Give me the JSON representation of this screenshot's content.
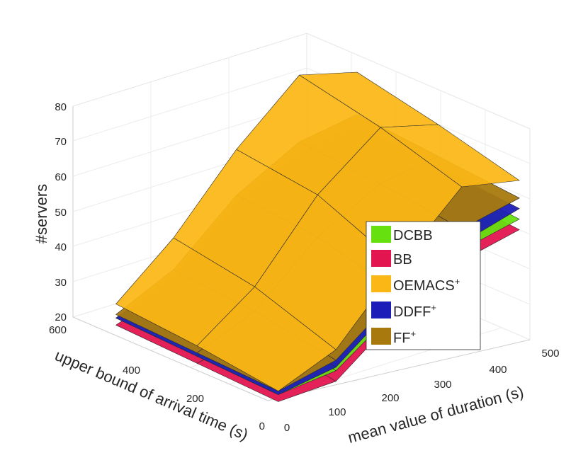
{
  "chart_data": {
    "type": "surface3d",
    "zlabel": "#servers",
    "ylabel": "upper bound of arrival time (s)",
    "xlabel": "mean value of duration (s)",
    "zlim": [
      20,
      85
    ],
    "ylim": [
      0,
      600
    ],
    "xlim": [
      0,
      500
    ],
    "z_ticks": [
      "20",
      "30",
      "40",
      "50",
      "60",
      "70",
      "80"
    ],
    "y_ticks": [
      "0",
      "200",
      "400",
      "600"
    ],
    "x_ticks": [
      "0",
      "100",
      "200",
      "300",
      "400",
      "500"
    ],
    "grid": true,
    "legend_position": "right-center",
    "series": [
      {
        "name": "DCBB",
        "sup": "",
        "color": "#66e00f",
        "surface": {
          "duration": [
            20,
            130,
            250,
            370,
            480
          ],
          "arrival": [
            500,
            250,
            0
          ],
          "z": [
            [
              23,
              30,
              47,
              55,
              60
            ],
            [
              22,
              28,
              45,
              52,
              57
            ],
            [
              21,
              24,
              38,
              50,
              55
            ]
          ]
        }
      },
      {
        "name": "BB",
        "sup": "",
        "color": "#e31550",
        "surface": {
          "duration": [
            20,
            130,
            250,
            370,
            480
          ],
          "arrival": [
            500,
            250,
            0
          ],
          "z": [
            [
              21,
              28,
              44,
              51,
              56
            ],
            [
              20,
              25,
              41,
              48,
              54
            ],
            [
              19,
              21,
              36,
              47,
              52
            ]
          ]
        }
      },
      {
        "name": "OEMACS",
        "sup": "+",
        "color": "#fbb716",
        "surface": {
          "duration": [
            20,
            130,
            250,
            370,
            480
          ],
          "arrival": [
            500,
            250,
            0
          ],
          "z": [
            [
              27,
              42,
              63,
              80,
              77
            ],
            [
              25,
              38,
              60,
              75,
              72
            ],
            [
              22,
              30,
              50,
              68,
              66
            ]
          ]
        }
      },
      {
        "name": "DDFF",
        "sup": "+",
        "color": "#1c1cb8",
        "surface": {
          "duration": [
            20,
            130,
            250,
            370,
            480
          ],
          "arrival": [
            500,
            250,
            0
          ],
          "z": [
            [
              23,
              31,
              48,
              58,
              62
            ],
            [
              22,
              29,
              46,
              56,
              60
            ],
            [
              21,
              25,
              40,
              52,
              58
            ]
          ]
        }
      },
      {
        "name": "FF",
        "sup": "+",
        "color": "#a87a0e",
        "surface": {
          "duration": [
            20,
            130,
            250,
            370,
            480
          ],
          "arrival": [
            500,
            250,
            0
          ],
          "z": [
            [
              24,
              33,
              50,
              61,
              65
            ],
            [
              23,
              31,
              48,
              59,
              63
            ],
            [
              22,
              27,
              42,
              56,
              61
            ]
          ]
        }
      }
    ]
  }
}
